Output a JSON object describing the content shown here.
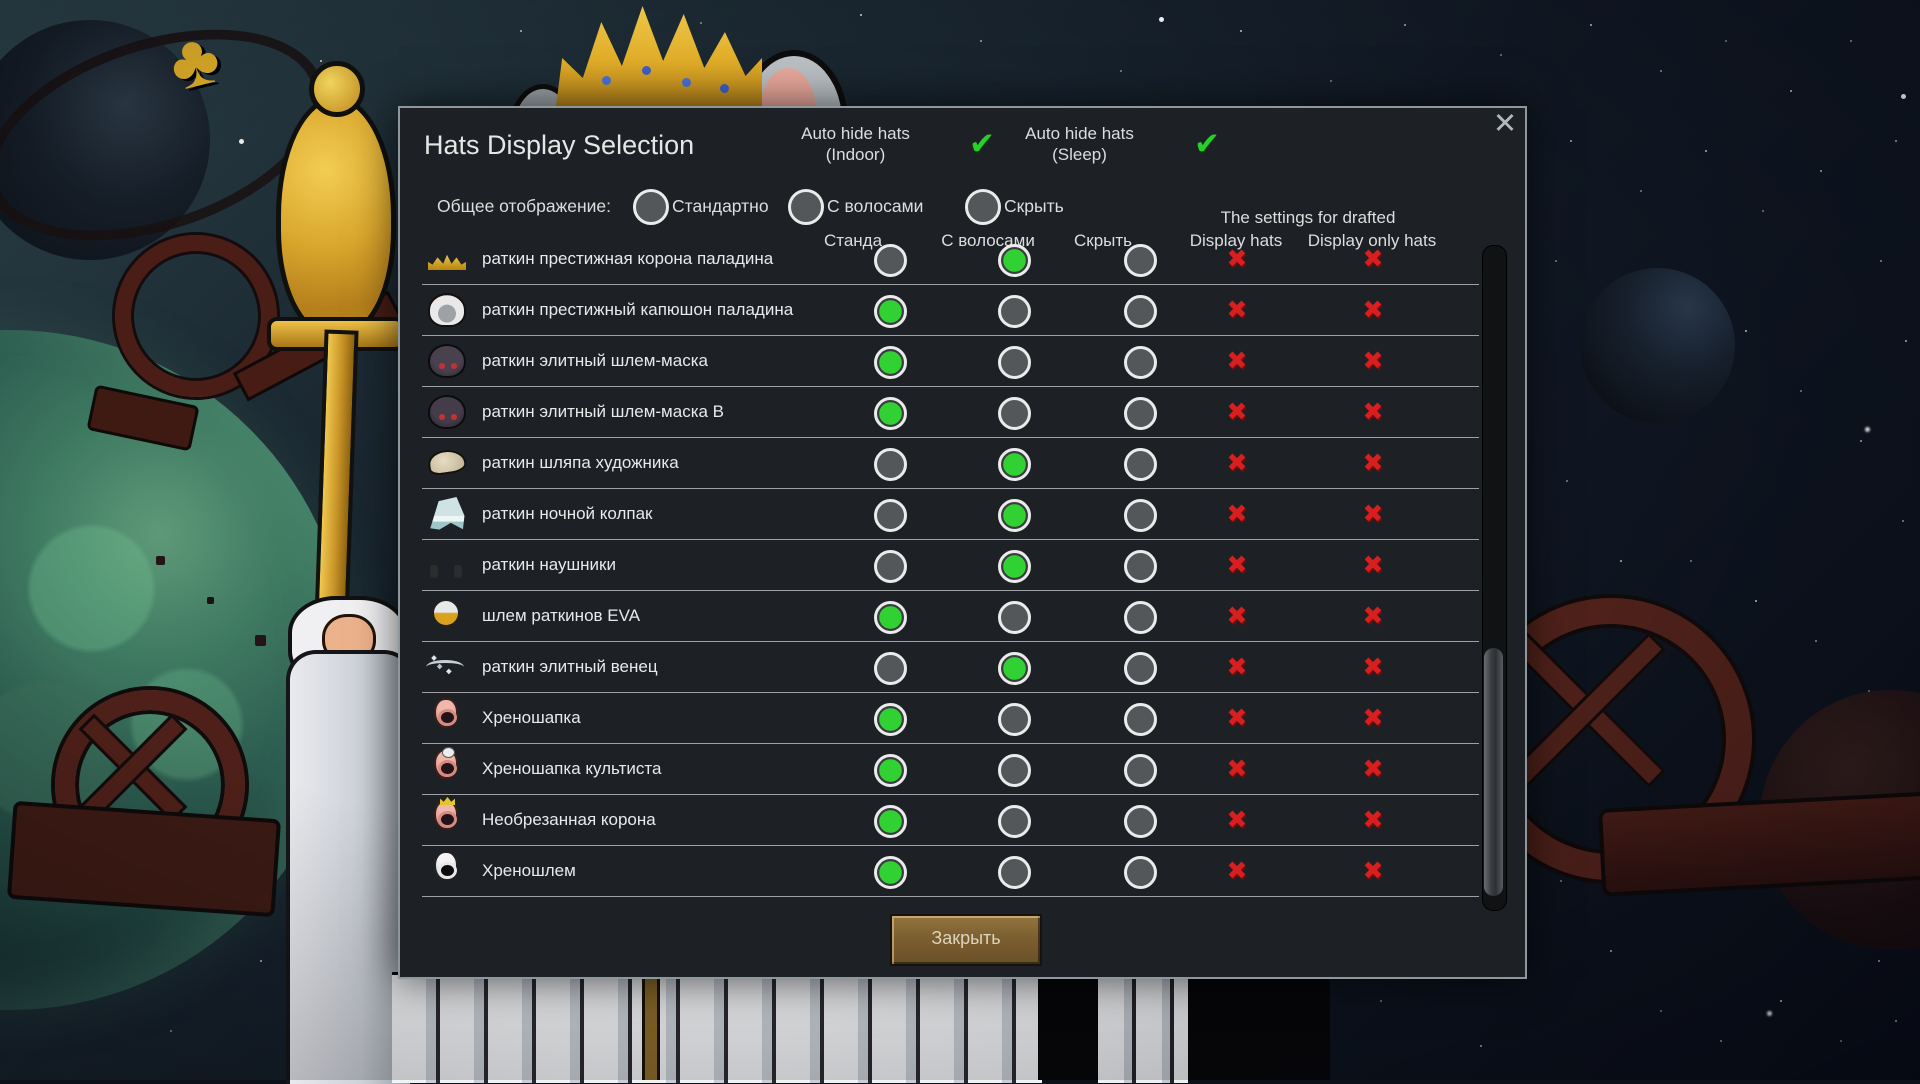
{
  "window": {
    "close_glyph": "✕"
  },
  "header": {
    "title": "Hats Display Selection",
    "check_glyph": "✔",
    "auto_hide": [
      {
        "line1": "Auto hide hats",
        "line2": "(Indoor)",
        "checked": true
      },
      {
        "line1": "Auto hide hats",
        "line2": "(Sleep)",
        "checked": true
      }
    ]
  },
  "global_display": {
    "label": "Общее отображение:",
    "options": [
      {
        "label": "Стандартно",
        "selected": false
      },
      {
        "label": "С волосами",
        "selected": false
      },
      {
        "label": "Скрыть",
        "selected": false
      }
    ]
  },
  "table": {
    "drafted_group_header": "The settings for drafted",
    "columns": {
      "standard": "Станда",
      "hair": "С волосами",
      "hide": "Скрыть",
      "display_hats": "Display hats",
      "display_only_hats": "Display only hats"
    },
    "cross_glyph": "✖",
    "rows": [
      {
        "icon": "paladin-crown",
        "name": "раткин престижная корона паладина",
        "mode": "hair",
        "display_hats": false,
        "display_only_hats": false
      },
      {
        "icon": "paladin-hood",
        "name": "раткин престижный капюшон паладина",
        "mode": "standard",
        "display_hats": false,
        "display_only_hats": false
      },
      {
        "icon": "elite-mask-helmet",
        "name": "раткин элитный шлем-маска",
        "mode": "standard",
        "display_hats": false,
        "display_only_hats": false
      },
      {
        "icon": "elite-mask-helmet-b",
        "name": "раткин элитный шлем-маска B",
        "mode": "standard",
        "display_hats": false,
        "display_only_hats": false
      },
      {
        "icon": "artist-hat",
        "name": "раткин шляпа художника",
        "mode": "hair",
        "display_hats": false,
        "display_only_hats": false
      },
      {
        "icon": "night-cap",
        "name": "раткин ночной колпак",
        "mode": "hair",
        "display_hats": false,
        "display_only_hats": false
      },
      {
        "icon": "headphones",
        "name": "раткин наушники",
        "mode": "hair",
        "display_hats": false,
        "display_only_hats": false
      },
      {
        "icon": "eva-helmet",
        "name": "шлем раткинов EVA",
        "mode": "standard",
        "display_hats": false,
        "display_only_hats": false
      },
      {
        "icon": "elite-circlet",
        "name": "раткин элитный венец",
        "mode": "hair",
        "display_hats": false,
        "display_only_hats": false
      },
      {
        "icon": "flesh-cap",
        "name": "Хреношапка",
        "mode": "standard",
        "display_hats": false,
        "display_only_hats": false
      },
      {
        "icon": "cultist-flesh-cap",
        "name": "Хреношапка культиста",
        "mode": "standard",
        "display_hats": false,
        "display_only_hats": false
      },
      {
        "icon": "uncut-crown",
        "name": "Необрезанная корона",
        "mode": "standard",
        "display_hats": false,
        "display_only_hats": false
      },
      {
        "icon": "flesh-helmet",
        "name": "Хреношлем",
        "mode": "standard",
        "display_hats": false,
        "display_only_hats": false
      }
    ]
  },
  "footer": {
    "close_button_label": "Закрыть"
  },
  "colors": {
    "accent_green": "#28cf28",
    "cross_red": "#d71f1f",
    "button_brown": "#7c5f30",
    "dialog_bg": "#1d2126"
  }
}
